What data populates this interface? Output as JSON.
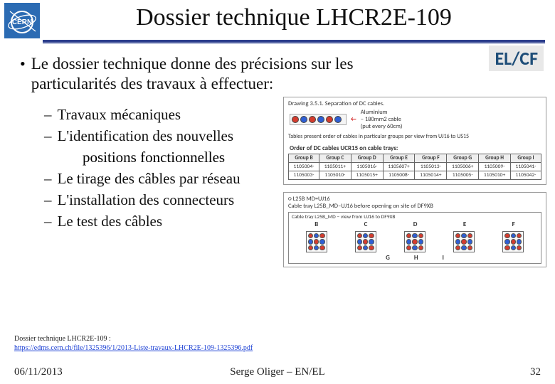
{
  "header": {
    "title": "Dossier technique LHCR2E-109",
    "logo": {
      "text": "CERN",
      "bg": "#2b6bb3",
      "ring": "#ffffff"
    },
    "rule_color": "#2b3d8c"
  },
  "badge": {
    "text": "EL/CF",
    "color": "#1f4e79",
    "bg": "#e8e8e8"
  },
  "main_bullet": "Le dossier technique donne des précisions sur les particularités des travaux à effectuer:",
  "sub_bullets": [
    "Travaux mécaniques",
    "L'identification des nouvelles",
    "positions fonctionnelles",
    "Le tirage des câbles par réseau",
    "L'installation des connecteurs",
    "Le test des câbles"
  ],
  "fig1": {
    "drawing_label": "Drawing 3.5.1. Separation of DC cables.",
    "annot1": "Aluminium",
    "annot2": "– 180mm2 cable",
    "annot3": "(put every 60cm)",
    "cable_colors": [
      "#d43c2e",
      "#2e5fd4",
      "#d43c2e",
      "#2e5fd4",
      "#d43c2e",
      "#2e5fd4"
    ],
    "note": "Tables present order of cables in particular groups per view from UJ16 to US15",
    "table_caption": "Order of DC cables UCR15 on cable trays:",
    "columns": [
      "Group B",
      "Group C",
      "Group D",
      "Group E",
      "Group F",
      "Group G",
      "Group H",
      "Group I"
    ],
    "rows": [
      [
        "1105004-",
        "1105011+",
        "1105016-",
        "1105607+",
        "1105013-",
        "1105006+",
        "1105009-",
        "1105041-"
      ],
      [
        "1105003-",
        "1105010-",
        "1105015+",
        "1105008-",
        "1105014+",
        "1105005-",
        "1105010+",
        "1105042-"
      ]
    ]
  },
  "fig2": {
    "line1": "○ L25B  MD=UJ16",
    "line2": "Cable tray L25B_MD–UJ16 before opening on site of DF9XB",
    "line3": "Cable tray L25B_MD – view from UJ16 to DF9XB",
    "top_labels": [
      "B",
      "C",
      "D",
      "E",
      "F"
    ],
    "bottom_labels": [
      "G",
      "H",
      "I"
    ],
    "pin_colors": [
      "#d43c2e",
      "#2e5fd4",
      "#d43c2e",
      "#2e5fd4",
      "#d43c2e",
      "#2e5fd4",
      "#d43c2e",
      "#2e5fd4",
      "#d43c2e"
    ]
  },
  "footnote": {
    "label": "Dossier technique LHCR2E-109 :",
    "url": "https://edms.cern.ch/file/1325396/1/2013-Liste-travaux-LHCR2E-109-1325396.pdf"
  },
  "footer": {
    "date": "06/11/2013",
    "author": "Serge Oliger – EN/EL",
    "page": "32"
  }
}
